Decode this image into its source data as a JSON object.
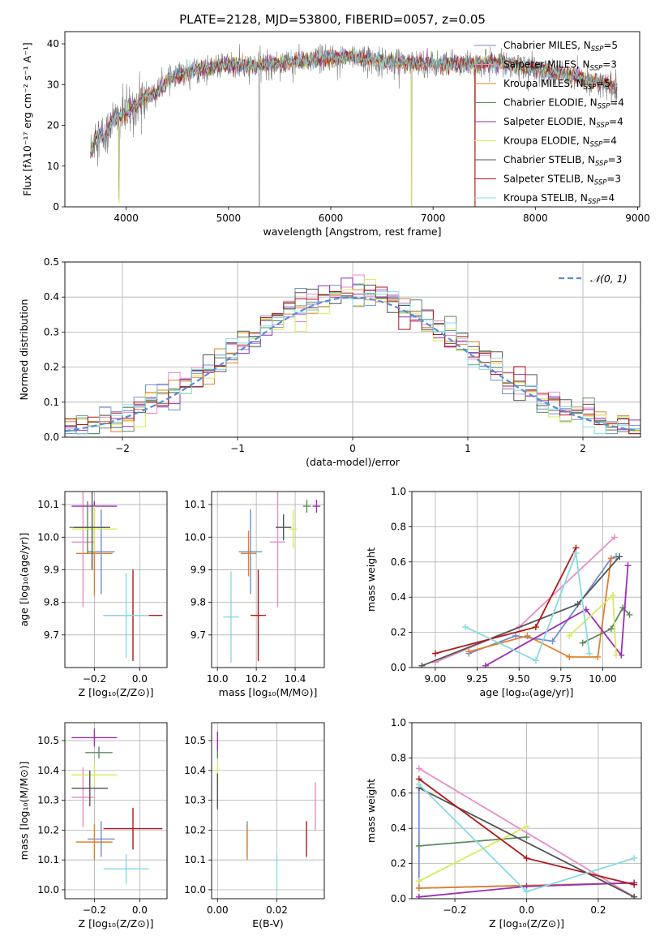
{
  "page_title": "PLATE=2128, MJD=53800, FIBERID=0057, z=0.05",
  "colors": {
    "Chabrier MILES": "#6d8fd6",
    "Salpeter MILES": "#e88cc4",
    "Kroupa MILES": "#e2802a",
    "Chabrier ELODIE": "#5e8a5e",
    "Salpeter ELODIE": "#9b2fb5",
    "Kroupa ELODIE": "#d7ec5a",
    "Chabrier STELIB": "#555555",
    "Salpeter STELIB": "#b01818",
    "Kroupa STELIB": "#86dbe0",
    "gaussian": "#5b8bd6"
  },
  "models": [
    {
      "key": "Chabrier MILES",
      "label": "Chabrier MILES, N",
      "sub": "SSP",
      "suffix": "=5"
    },
    {
      "key": "Salpeter MILES",
      "label": "Salpeter MILES, N",
      "sub": "SSP",
      "suffix": "=3"
    },
    {
      "key": "Kroupa MILES",
      "label": "Kroupa MILES, N",
      "sub": "SSP",
      "suffix": "=5"
    },
    {
      "key": "Chabrier ELODIE",
      "label": "Chabrier ELODIE, N",
      "sub": "SSP",
      "suffix": "=4"
    },
    {
      "key": "Salpeter ELODIE",
      "label": "Salpeter ELODIE, N",
      "sub": "SSP",
      "suffix": "=4"
    },
    {
      "key": "Kroupa ELODIE",
      "label": "Kroupa ELODIE, N",
      "sub": "SSP",
      "suffix": "=4"
    },
    {
      "key": "Chabrier STELIB",
      "label": "Chabrier STELIB, N",
      "sub": "SSP",
      "suffix": "=3"
    },
    {
      "key": "Salpeter STELIB",
      "label": "Salpeter STELIB, N",
      "sub": "SSP",
      "suffix": "=3"
    },
    {
      "key": "Kroupa STELIB",
      "label": "Kroupa STELIB, N",
      "sub": "SSP",
      "suffix": "=4"
    }
  ],
  "chart_data": [
    {
      "id": "spectrum",
      "type": "line",
      "title": "PLATE=2128, MJD=53800, FIBERID=0057, z=0.05",
      "xlabel": "wavelength [Angstrom, rest frame]",
      "ylabel": "Flux [fλ10⁻¹⁷ erg cm⁻² s⁻¹ A⁻¹]",
      "xlim": [
        3400,
        9020
      ],
      "ylim": [
        0,
        43
      ],
      "xticks": [
        4000,
        5000,
        6000,
        7000,
        8000,
        9000
      ],
      "yticks": [
        0,
        10,
        20,
        30,
        40
      ],
      "grid": false,
      "legend": "upper right",
      "continuum": [
        [
          3650,
          13
        ],
        [
          3700,
          18
        ],
        [
          3800,
          17
        ],
        [
          3850,
          21
        ],
        [
          3950,
          22
        ],
        [
          4000,
          23
        ],
        [
          4100,
          25
        ],
        [
          4200,
          27
        ],
        [
          4300,
          28
        ],
        [
          4400,
          31
        ],
        [
          4500,
          32
        ],
        [
          4600,
          33
        ],
        [
          4700,
          34
        ],
        [
          4800,
          34
        ],
        [
          4900,
          34.5
        ],
        [
          5000,
          35
        ],
        [
          5200,
          34.5
        ],
        [
          5400,
          35
        ],
        [
          5600,
          35.5
        ],
        [
          5800,
          36
        ],
        [
          6000,
          36.5
        ],
        [
          6200,
          37
        ],
        [
          6400,
          36
        ],
        [
          6600,
          35.5
        ],
        [
          6800,
          35.5
        ],
        [
          7000,
          35
        ],
        [
          7200,
          35
        ],
        [
          7400,
          35
        ],
        [
          7600,
          35.5
        ],
        [
          7800,
          35
        ],
        [
          8000,
          34
        ],
        [
          8200,
          33
        ],
        [
          8400,
          32
        ],
        [
          8500,
          31
        ],
        [
          8600,
          31
        ],
        [
          8700,
          30
        ],
        [
          8800,
          29
        ]
      ],
      "spikes": [
        [
          3930,
          2
        ],
        [
          5300,
          0.2
        ],
        [
          6790,
          0.2
        ],
        [
          7410,
          0.2
        ]
      ]
    },
    {
      "id": "residuals",
      "type": "histogram",
      "xlabel": "(data-model)/error",
      "ylabel": "Normed distribution",
      "xlim": [
        -2.5,
        2.5
      ],
      "ylim": [
        0,
        0.5
      ],
      "xticks": [
        -2,
        -1,
        0,
        1,
        2
      ],
      "yticks": [
        0.0,
        0.1,
        0.2,
        0.3,
        0.4,
        0.5
      ],
      "grid": true,
      "bin_width": 0.1,
      "reference_label": "𝒩(0, 1)",
      "reference": {
        "mean": 0,
        "sigma": 1
      }
    },
    {
      "id": "age-vs-z",
      "type": "errorbar",
      "xlabel": "Z [log₁₀(Z/Z⊙)]",
      "ylabel": "age  [log₁₀(age/yr)]",
      "xlim": [
        -0.33,
        0.12
      ],
      "ylim": [
        9.6,
        10.14
      ],
      "xticks": [
        -0.2,
        0.0
      ],
      "yticks": [
        9.7,
        9.8,
        9.9,
        10.0,
        10.1
      ],
      "grid": true,
      "points": [
        {
          "model": "Chabrier MILES",
          "x": -0.17,
          "xerr": 0.06,
          "y": 9.955,
          "yerr": 0.13
        },
        {
          "model": "Salpeter MILES",
          "x": -0.25,
          "xerr": 0.05,
          "y": 9.985,
          "yerr": 0.2
        },
        {
          "model": "Kroupa MILES",
          "x": -0.2,
          "xerr": 0.08,
          "y": 9.95,
          "yerr": 0.13
        },
        {
          "model": "Chabrier ELODIE",
          "x": -0.23,
          "xerr": 0.08,
          "y": 10.03,
          "yerr": 0.08
        },
        {
          "model": "Salpeter ELODIE",
          "x": -0.2,
          "xerr": 0.1,
          "y": 10.095,
          "yerr": 0.015
        },
        {
          "model": "Kroupa ELODIE",
          "x": -0.2,
          "xerr": 0.1,
          "y": 10.025,
          "yerr": 0.07
        },
        {
          "model": "Chabrier STELIB",
          "x": -0.21,
          "xerr": 0.08,
          "y": 10.03,
          "yerr": 0.13
        },
        {
          "model": "Salpeter STELIB",
          "x": -0.03,
          "xerr": 0.13,
          "y": 9.76,
          "yerr": 0.14
        },
        {
          "model": "Kroupa STELIB",
          "x": -0.06,
          "xerr": 0.1,
          "y": 9.76,
          "yerr": 0.13
        }
      ]
    },
    {
      "id": "age-vs-mass",
      "type": "errorbar",
      "xlabel": "mass [log₁₀(M/M⊙)]",
      "ylabel": "",
      "xlim": [
        9.97,
        10.55
      ],
      "ylim": [
        9.6,
        10.14
      ],
      "xticks": [
        10.0,
        10.2,
        10.4
      ],
      "yticks": [
        9.7,
        9.8,
        9.9,
        10.0,
        10.1
      ],
      "grid": true,
      "points": [
        {
          "model": "Chabrier MILES",
          "x": 10.17,
          "xerr": 0.06,
          "y": 9.955,
          "yerr": 0.13
        },
        {
          "model": "Salpeter MILES",
          "x": 10.31,
          "xerr": 0.04,
          "y": 9.985,
          "yerr": 0.2
        },
        {
          "model": "Kroupa MILES",
          "x": 10.16,
          "xerr": 0.04,
          "y": 9.95,
          "yerr": 0.07
        },
        {
          "model": "Chabrier ELODIE",
          "x": 10.46,
          "xerr": 0.02,
          "y": 10.095,
          "yerr": 0.02
        },
        {
          "model": "Salpeter ELODIE",
          "x": 10.51,
          "xerr": 0.02,
          "y": 10.095,
          "yerr": 0.02
        },
        {
          "model": "Kroupa ELODIE",
          "x": 10.39,
          "xerr": 0.02,
          "y": 10.025,
          "yerr": 0.06
        },
        {
          "model": "Chabrier STELIB",
          "x": 10.34,
          "xerr": 0.04,
          "y": 10.03,
          "yerr": 0.04
        },
        {
          "model": "Salpeter STELIB",
          "x": 10.21,
          "xerr": 0.04,
          "y": 9.76,
          "yerr": 0.14
        },
        {
          "model": "Kroupa STELIB",
          "x": 10.07,
          "xerr": 0.04,
          "y": 9.755,
          "yerr": 0.14
        }
      ]
    },
    {
      "id": "weight-vs-age",
      "type": "line",
      "xlabel": "age  [log₁₀(age/yr)]",
      "ylabel": "mass weight",
      "xlim": [
        8.86,
        10.23
      ],
      "ylim": [
        0.0,
        1.0
      ],
      "xticks": [
        9.0,
        9.25,
        9.5,
        9.75,
        10.0
      ],
      "yticks": [
        0.0,
        0.2,
        0.4,
        0.6,
        0.8,
        1.0
      ],
      "grid": true,
      "series": [
        {
          "model": "Chabrier MILES",
          "x": [
            9.2,
            9.48,
            9.7,
            10.05,
            10.08
          ],
          "y": [
            0.08,
            0.18,
            0.15,
            0.62,
            0.63
          ]
        },
        {
          "model": "Salpeter MILES",
          "x": [
            9.0,
            9.5,
            10.07
          ],
          "y": [
            0.03,
            0.23,
            0.74
          ]
        },
        {
          "model": "Kroupa MILES",
          "x": [
            9.2,
            9.55,
            9.8,
            9.97,
            10.05
          ],
          "y": [
            0.09,
            0.18,
            0.06,
            0.06,
            0.62
          ]
        },
        {
          "model": "Chabrier ELODIE",
          "x": [
            9.88,
            10.05,
            10.12,
            10.16
          ],
          "y": [
            0.14,
            0.22,
            0.34,
            0.3
          ]
        },
        {
          "model": "Salpeter ELODIE",
          "x": [
            9.3,
            9.9,
            10.11,
            10.15
          ],
          "y": [
            0.01,
            0.33,
            0.07,
            0.58
          ]
        },
        {
          "model": "Kroupa ELODIE",
          "x": [
            9.8,
            10.06,
            10.08
          ],
          "y": [
            0.18,
            0.41,
            0.07
          ]
        },
        {
          "model": "Chabrier STELIB",
          "x": [
            8.92,
            9.85,
            10.1
          ],
          "y": [
            0.01,
            0.36,
            0.63
          ]
        },
        {
          "model": "Salpeter STELIB",
          "x": [
            9.0,
            9.6,
            9.84
          ],
          "y": [
            0.08,
            0.23,
            0.68
          ]
        },
        {
          "model": "Kroupa STELIB",
          "x": [
            9.18,
            9.6,
            9.84,
            9.92
          ],
          "y": [
            0.23,
            0.04,
            0.65,
            0.08
          ]
        }
      ]
    },
    {
      "id": "mass-vs-z",
      "type": "errorbar",
      "xlabel": "Z [log₁₀(Z/Z⊙)]",
      "ylabel": "mass [log₁₀(M/M⊙)]",
      "xlim": [
        -0.33,
        0.12
      ],
      "ylim": [
        9.97,
        10.56
      ],
      "xticks": [
        -0.2,
        0.0
      ],
      "yticks": [
        10.0,
        10.1,
        10.2,
        10.3,
        10.4,
        10.5
      ],
      "grid": true,
      "points": [
        {
          "model": "Chabrier MILES",
          "x": -0.17,
          "xerr": 0.06,
          "y": 10.17,
          "yerr": 0.06
        },
        {
          "model": "Salpeter MILES",
          "x": -0.25,
          "xerr": 0.05,
          "y": 10.31,
          "yerr": 0.1
        },
        {
          "model": "Kroupa MILES",
          "x": -0.2,
          "xerr": 0.08,
          "y": 10.16,
          "yerr": 0.06
        },
        {
          "model": "Chabrier ELODIE",
          "x": -0.18,
          "xerr": 0.06,
          "y": 10.46,
          "yerr": 0.02
        },
        {
          "model": "Salpeter ELODIE",
          "x": -0.2,
          "xerr": 0.1,
          "y": 10.51,
          "yerr": 0.03
        },
        {
          "model": "Kroupa ELODIE",
          "x": -0.2,
          "xerr": 0.1,
          "y": 10.385,
          "yerr": 0.04
        },
        {
          "model": "Chabrier STELIB",
          "x": -0.22,
          "xerr": 0.08,
          "y": 10.34,
          "yerr": 0.06
        },
        {
          "model": "Salpeter STELIB",
          "x": -0.03,
          "xerr": 0.13,
          "y": 10.205,
          "yerr": 0.07
        },
        {
          "model": "Kroupa STELIB",
          "x": -0.06,
          "xerr": 0.1,
          "y": 10.07,
          "yerr": 0.05
        }
      ]
    },
    {
      "id": "mass-vs-ebv",
      "type": "errorbar",
      "xlabel": "E(B-V)",
      "ylabel": "",
      "xlim": [
        -0.002,
        0.036
      ],
      "ylim": [
        9.97,
        10.56
      ],
      "xticks": [
        0.0,
        0.02
      ],
      "yticks": [
        10.0,
        10.1,
        10.2,
        10.3,
        10.4,
        10.5
      ],
      "grid": true,
      "points": [
        {
          "model": "Chabrier MILES",
          "x": 0.01,
          "xerr": 0,
          "y": 10.17,
          "yerr": 0.06
        },
        {
          "model": "Salpeter MILES",
          "x": 0.033,
          "xerr": 0,
          "y": 10.28,
          "yerr": 0.08
        },
        {
          "model": "Kroupa MILES",
          "x": 0.01,
          "xerr": 0,
          "y": 10.16,
          "yerr": 0.06
        },
        {
          "model": "Chabrier ELODIE",
          "x": 0.0,
          "xerr": 0,
          "y": 10.46,
          "yerr": 0.02
        },
        {
          "model": "Salpeter ELODIE",
          "x": 0.0,
          "xerr": 0,
          "y": 10.5,
          "yerr": 0.03
        },
        {
          "model": "Kroupa ELODIE",
          "x": 0.0,
          "xerr": 0,
          "y": 10.39,
          "yerr": 0.04
        },
        {
          "model": "Chabrier STELIB",
          "x": 0.0,
          "xerr": 0,
          "y": 10.33,
          "yerr": 0.06
        },
        {
          "model": "Salpeter STELIB",
          "x": 0.03,
          "xerr": 0,
          "y": 10.17,
          "yerr": 0.06
        },
        {
          "model": "Kroupa STELIB",
          "x": 0.02,
          "xerr": 0,
          "y": 10.06,
          "yerr": 0.06
        }
      ]
    },
    {
      "id": "weight-vs-z",
      "type": "line",
      "xlabel": "Z [log₁₀(Z/Z⊙)]",
      "ylabel": "mass weight",
      "xlim": [
        -0.32,
        0.32
      ],
      "ylim": [
        0.0,
        1.0
      ],
      "xticks": [
        -0.2,
        0.0,
        0.2
      ],
      "yticks": [
        0.0,
        0.2,
        0.4,
        0.6,
        0.8,
        1.0
      ],
      "grid": true,
      "series": [
        {
          "model": "Chabrier MILES",
          "x": [
            -0.3,
            -0.3,
            0.3
          ],
          "y": [
            0.63,
            0.06,
            0.09
          ]
        },
        {
          "model": "Salpeter MILES",
          "x": [
            -0.3,
            0.3
          ],
          "y": [
            0.74,
            0.01
          ]
        },
        {
          "model": "Kroupa MILES",
          "x": [
            -0.3,
            0.3
          ],
          "y": [
            0.06,
            0.09
          ]
        },
        {
          "model": "Chabrier ELODIE",
          "x": [
            -0.3,
            0.0
          ],
          "y": [
            0.3,
            0.35
          ]
        },
        {
          "model": "Salpeter ELODIE",
          "x": [
            -0.3,
            0.0,
            0.3
          ],
          "y": [
            0.01,
            0.07,
            0.09
          ]
        },
        {
          "model": "Kroupa ELODIE",
          "x": [
            -0.3,
            0.0
          ],
          "y": [
            0.1,
            0.41
          ]
        },
        {
          "model": "Chabrier STELIB",
          "x": [
            -0.3,
            0.3
          ],
          "y": [
            0.63,
            0.01
          ]
        },
        {
          "model": "Salpeter STELIB",
          "x": [
            -0.3,
            0.0,
            0.3
          ],
          "y": [
            0.68,
            0.23,
            0.08
          ]
        },
        {
          "model": "Kroupa STELIB",
          "x": [
            -0.3,
            0.0,
            0.3
          ],
          "y": [
            0.65,
            0.04,
            0.23
          ]
        }
      ]
    }
  ]
}
